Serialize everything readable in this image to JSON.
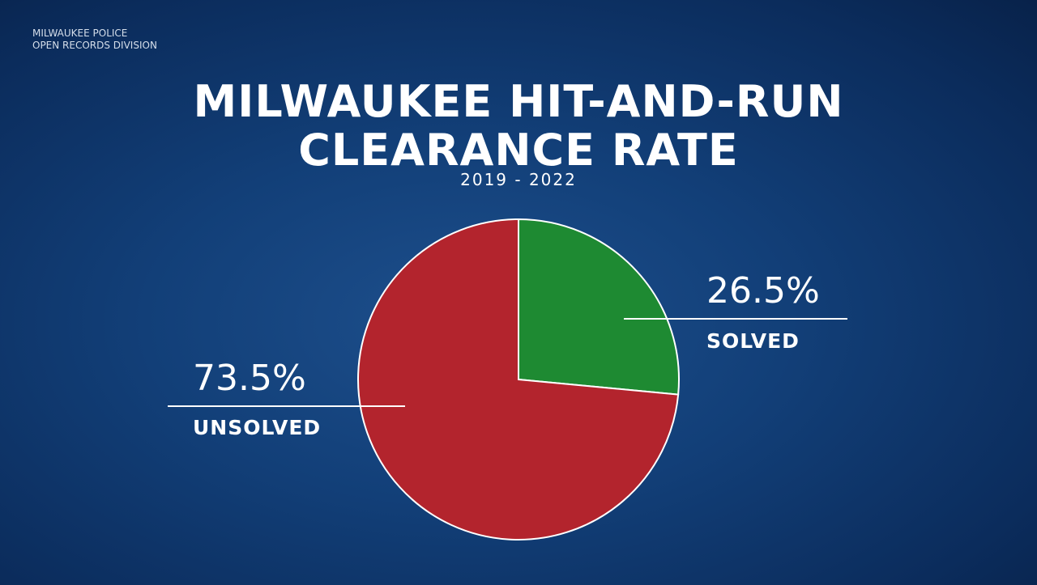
{
  "chart_data": {
    "type": "pie",
    "source": [
      "MILWAUKEE POLICE",
      "OPEN RECORDS DIVISION"
    ],
    "title": "MILWAUKEE HIT-AND-RUN CLEARANCE RATE",
    "subtitle": "2019 - 2022",
    "categories": [
      "SOLVED",
      "UNSOLVED"
    ],
    "values": [
      26.5,
      73.5
    ],
    "value_labels": [
      "26.5%",
      "73.5%"
    ],
    "colors": [
      "#1e8a32",
      "#b3242d"
    ]
  }
}
